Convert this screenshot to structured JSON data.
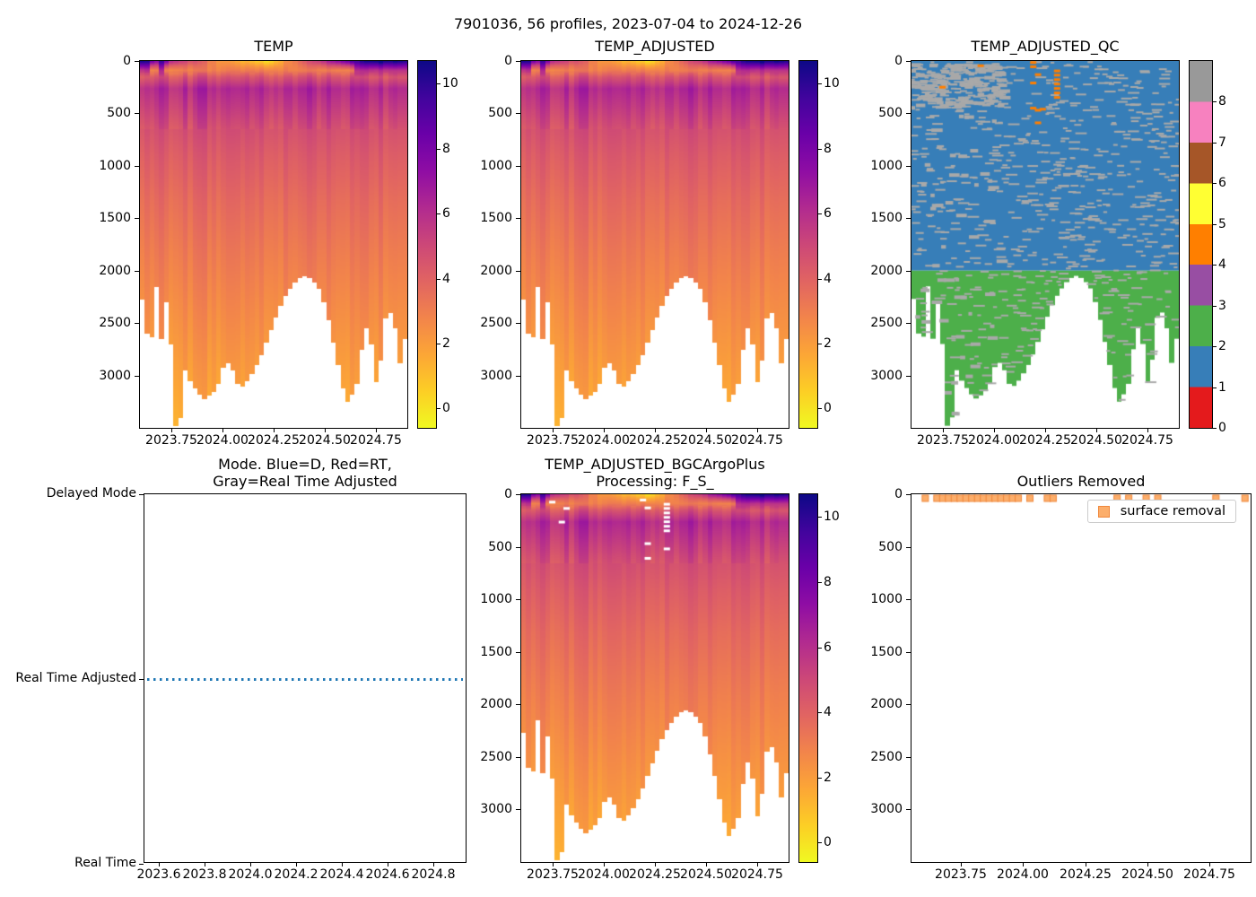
{
  "suptitle": "7901036, 56 profiles, 2023-07-04 to 2024-12-26",
  "panels": {
    "temp": {
      "title": "TEMP"
    },
    "temp_adjusted": {
      "title": "TEMP_ADJUSTED"
    },
    "qc": {
      "title": "TEMP_ADJUSTED_QC"
    },
    "mode": {
      "title_line1": "Mode. Blue=D, Red=RT,",
      "title_line2": "Gray=Real Time Adjusted",
      "ytick_labels": [
        "Delayed Mode",
        "Real Time Adjusted",
        "Real Time"
      ],
      "xtick_labels": [
        "2023.6",
        "2023.8",
        "2024.0",
        "2024.2",
        "2024.4",
        "2024.6",
        "2024.8"
      ]
    },
    "processing": {
      "title_line1": "TEMP_ADJUSTED_BGCArgoPlus",
      "title_line2": "Processing: F_S_"
    },
    "outliers": {
      "title": "Outliers Removed",
      "legend_label": "surface removal"
    }
  },
  "axes": {
    "depth_tick_labels": [
      "0",
      "500",
      "1000",
      "1500",
      "2000",
      "2500",
      "3000"
    ],
    "time_tick_labels": [
      "2023.75",
      "2024.00",
      "2024.25",
      "2024.50",
      "2024.75"
    ],
    "temp_cbar_tick_labels": [
      "0",
      "2",
      "4",
      "6",
      "8",
      "10"
    ],
    "qc_cbar_tick_labels": [
      "0",
      "1",
      "2",
      "3",
      "4",
      "5",
      "6",
      "7",
      "8"
    ]
  },
  "colors": {
    "plasma_stops": [
      "#0d0887",
      "#41049d",
      "#6a00a8",
      "#8f0da4",
      "#b12a90",
      "#cc4778",
      "#e16462",
      "#f2844b",
      "#fca636",
      "#fcce25",
      "#f0f921"
    ],
    "qc_palette": [
      "#e41a1c",
      "#377eb8",
      "#4daf4a",
      "#984ea3",
      "#ff7f00",
      "#ffff33",
      "#a65628",
      "#f781bf",
      "#999999"
    ],
    "qc_missing_dash": "#a9a9a9",
    "mode_line": "#1f77b4",
    "outlier_fill": "#fcae6b",
    "outlier_edge": "#f0883c",
    "spine": "#000000"
  },
  "chart_data": {
    "shared": {
      "float_id": "7901036",
      "n_profiles": 56,
      "date_range": [
        "2023-07-04",
        "2024-12-26"
      ],
      "time_axis_range": [
        2023.597,
        2024.912
      ],
      "depth_axis_range_m": [
        0,
        3500
      ],
      "depth_ticks_m": [
        0,
        500,
        1000,
        1500,
        2000,
        2500,
        3000
      ],
      "time_ticks": [
        2023.75,
        2024.0,
        2024.25,
        2024.5,
        2024.75
      ],
      "colormap": "plasma_r",
      "vmin": -0.6,
      "vmax": 10.7,
      "profile_max_depth_m": [
        2270,
        2600,
        2630,
        2150,
        2650,
        2300,
        2700,
        3480,
        3400,
        2950,
        3050,
        3120,
        3180,
        3220,
        3190,
        3150,
        3080,
        2920,
        2880,
        2950,
        3080,
        3100,
        3050,
        2980,
        2900,
        2800,
        2680,
        2560,
        2440,
        2330,
        2240,
        2170,
        2110,
        2070,
        2050,
        2070,
        2110,
        2170,
        2300,
        2470,
        2680,
        2900,
        3120,
        3250,
        3180,
        3080,
        2750,
        2550,
        2700,
        3060,
        2850,
        2450,
        2400,
        2550,
        2880,
        2650
      ],
      "surface_temp_c": [
        10.8,
        10.3,
        8.5,
        7.5,
        9.5,
        8,
        6.5,
        6,
        5.5,
        5,
        4.8,
        4.5,
        4,
        3.6,
        3.2,
        2.8,
        2.5,
        2.2,
        2,
        1.8,
        1.5,
        1.3,
        1.2,
        1.0,
        0.8,
        0.5,
        0.3,
        0.6,
        1.2,
        1.8,
        2.3,
        2.8,
        3.3,
        3.8,
        4.2,
        4.6,
        5,
        5.5,
        6,
        6.5,
        7,
        7.5,
        8,
        8.5,
        9,
        9.5,
        10,
        10.3,
        10.6,
        10.8,
        10.9,
        10.7,
        10.5,
        10.8,
        10.6,
        10.4
      ],
      "base_temp_profile_depth_c": [
        [
          85,
          3.0
        ],
        [
          150,
          4.6
        ],
        [
          260,
          6.25
        ],
        [
          430,
          5.6
        ],
        [
          650,
          4.75
        ],
        [
          900,
          4.3
        ],
        [
          1300,
          3.75
        ],
        [
          1800,
          3.2
        ],
        [
          2200,
          2.8
        ],
        [
          2600,
          2.4
        ],
        [
          3000,
          2.0
        ],
        [
          3300,
          1.7
        ],
        [
          3500,
          1.5
        ]
      ]
    },
    "panels": [
      {
        "id": "temp",
        "type": "heatmap",
        "title": "TEMP",
        "cbar_ticks": [
          0,
          2,
          4,
          6,
          8,
          10
        ]
      },
      {
        "id": "temp_adjusted",
        "type": "heatmap",
        "title": "TEMP_ADJUSTED",
        "cbar_ticks": [
          0,
          2,
          4,
          6,
          8,
          10
        ]
      },
      {
        "id": "temp_adjusted_qc",
        "type": "heatmap",
        "title": "TEMP_ADJUSTED_QC",
        "qc_value_above_2000m": 1,
        "qc_value_below_2000m": 2,
        "qc_boundary_depth_m": 2000,
        "cbar_ticks": [
          0,
          1,
          2,
          3,
          4,
          5,
          6,
          7,
          8
        ],
        "flag4_marks_profile_depth": [
          [
            7,
            250
          ],
          [
            15,
            45
          ],
          [
            26,
            15
          ],
          [
            26,
            55
          ],
          [
            26,
            210
          ],
          [
            26,
            450
          ],
          [
            27,
            130
          ],
          [
            27,
            470
          ],
          [
            27,
            590
          ],
          [
            28,
            460
          ],
          [
            31,
            95
          ],
          [
            31,
            135
          ],
          [
            31,
            178
          ],
          [
            31,
            220
          ],
          [
            31,
            262
          ],
          [
            31,
            305
          ],
          [
            31,
            348
          ]
        ]
      },
      {
        "id": "mode",
        "type": "line",
        "title": "Mode. Blue=D, Red=RT, Gray=Real Time Adjusted",
        "y_categories": [
          "Real Time",
          "Real Time Adjusted",
          "Delayed Mode"
        ],
        "mode_value_all_profiles": "Real Time Adjusted",
        "line_style": "dotted",
        "xticks": [
          2023.6,
          2023.8,
          2024.0,
          2024.2,
          2024.4,
          2024.6,
          2024.8
        ]
      },
      {
        "id": "processing",
        "type": "heatmap",
        "title": "TEMP_ADJUSTED_BGCArgoPlus Processing: F_S_",
        "cbar_ticks": [
          0,
          2,
          4,
          6,
          8,
          10
        ],
        "removed_points_profile_depth": [
          [
            7,
            75
          ],
          [
            9,
            265
          ],
          [
            10,
            135
          ],
          [
            26,
            55
          ],
          [
            27,
            130
          ],
          [
            27,
            470
          ],
          [
            27,
            610
          ],
          [
            31,
            95
          ],
          [
            31,
            135
          ],
          [
            31,
            178
          ],
          [
            31,
            220
          ],
          [
            31,
            262
          ],
          [
            31,
            305
          ],
          [
            31,
            348
          ],
          [
            31,
            520
          ]
        ]
      },
      {
        "id": "outliers",
        "type": "scatter",
        "title": "Outliers Removed",
        "legend": [
          "surface removal"
        ],
        "marker": "square",
        "outlier_depth_m": 25,
        "outlier_profiles": [
          1,
          3,
          4,
          5,
          6,
          7,
          8,
          9,
          10,
          11,
          12,
          13,
          14,
          15,
          16,
          17,
          19,
          22,
          23,
          34,
          36,
          39,
          41,
          51,
          56
        ],
        "time_axis_range": [
          2023.553,
          2024.923
        ]
      }
    ]
  }
}
